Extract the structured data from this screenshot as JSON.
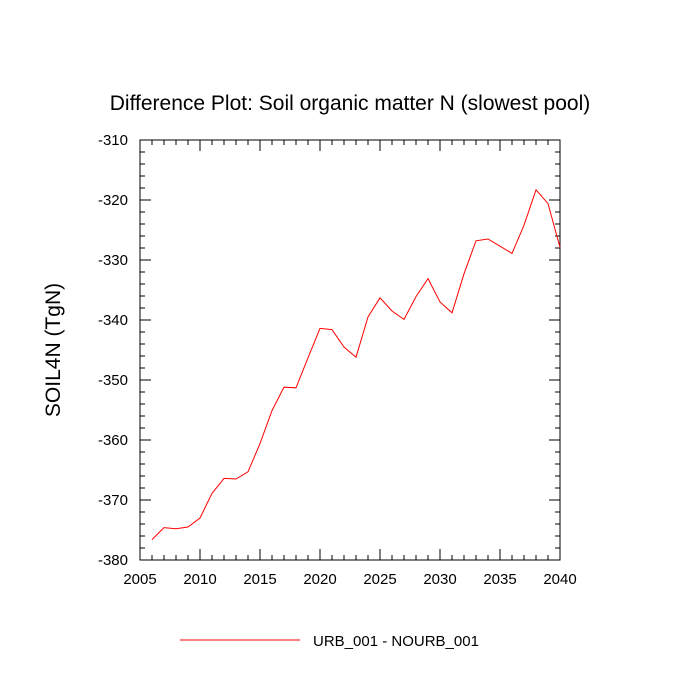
{
  "chart_data": {
    "type": "line",
    "title": "Difference Plot: Soil organic matter N (slowest pool)",
    "xlabel": "",
    "ylabel": "SOIL4N  (TgN)",
    "xlim": [
      2005,
      2040
    ],
    "ylim": [
      -380,
      -310
    ],
    "xticks": [
      2005,
      2010,
      2015,
      2020,
      2025,
      2030,
      2035,
      2040
    ],
    "xtick_labels": [
      "2005",
      "2010",
      "2015",
      "2020",
      "2025",
      "2030",
      "2035",
      "2040"
    ],
    "yticks": [
      -380,
      -370,
      -360,
      -350,
      -340,
      -330,
      -320,
      -310
    ],
    "ytick_labels": [
      "-380",
      "-370",
      "-360",
      "-350",
      "-340",
      "-330",
      "-320",
      "-310"
    ],
    "grid": false,
    "legend_position": "bottom-center",
    "series": [
      {
        "name": "URB_001 - NOURB_001",
        "color": "#ff0000",
        "x": [
          2006,
          2007,
          2008,
          2009,
          2010,
          2011,
          2012,
          2013,
          2014,
          2015,
          2016,
          2017,
          2018,
          2019,
          2020,
          2021,
          2022,
          2023,
          2024,
          2025,
          2026,
          2027,
          2028,
          2029,
          2030,
          2031,
          2032,
          2033,
          2034,
          2035,
          2036,
          2037,
          2038,
          2039,
          2040
        ],
        "values": [
          -376.6,
          -374.6,
          -374.8,
          -374.5,
          -373.0,
          -368.9,
          -366.4,
          -366.5,
          -365.3,
          -360.6,
          -355.1,
          -351.2,
          -351.3,
          -346.3,
          -341.4,
          -341.6,
          -344.5,
          -346.2,
          -339.5,
          -336.3,
          -338.5,
          -339.9,
          -336.1,
          -333.1,
          -337.0,
          -338.8,
          -332.3,
          -326.8,
          -326.5,
          -327.7,
          -328.9,
          -324.2,
          -318.3,
          -320.6,
          -327.9
        ]
      }
    ]
  }
}
